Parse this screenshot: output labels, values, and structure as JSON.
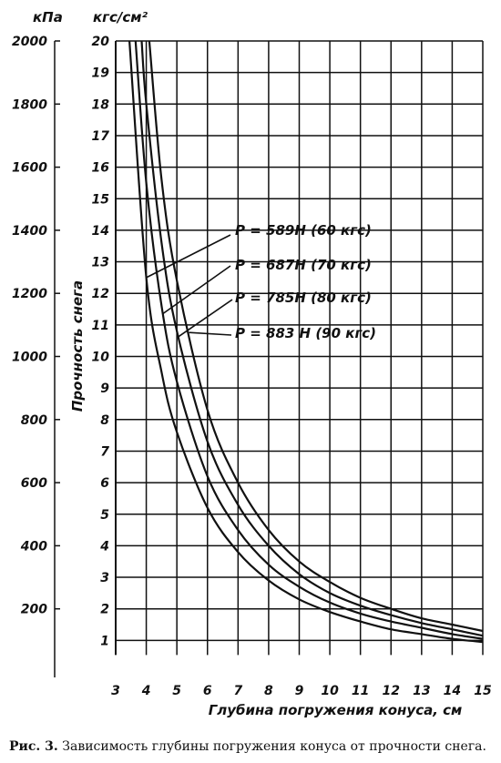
{
  "caption": {
    "lead": "Рис. 3.",
    "text": "Зависимость глубины погружения конуса от прочности снега."
  },
  "chart_data": {
    "type": "line",
    "xlabel": "Глубина погружения конуса, см",
    "ylabel": "Прочность снега",
    "y_unit": "кгс/см²",
    "y2_unit": "кПа",
    "xlim": [
      3,
      15
    ],
    "ylim": [
      0,
      20
    ],
    "y2lim": [
      0,
      2000
    ],
    "x_ticks": [
      3,
      4,
      5,
      6,
      7,
      8,
      9,
      10,
      11,
      12,
      13,
      14,
      15
    ],
    "y_ticks": [
      1,
      2,
      3,
      4,
      5,
      6,
      7,
      8,
      9,
      10,
      11,
      12,
      13,
      14,
      15,
      16,
      17,
      18,
      19,
      20
    ],
    "y2_ticks": [
      200,
      400,
      600,
      800,
      1000,
      1200,
      1400,
      1600,
      1800,
      2000
    ],
    "grid": true,
    "series": [
      {
        "name": "P = 589Н (60 кгс)",
        "x": [
          3.45,
          4,
          4.5,
          5,
          6,
          7,
          8,
          9,
          10,
          11,
          12,
          13,
          14,
          15
        ],
        "y": [
          20,
          12.5,
          9.5,
          7.6,
          5.2,
          3.8,
          2.9,
          2.3,
          1.9,
          1.6,
          1.35,
          1.2,
          1.05,
          0.95
        ]
      },
      {
        "name": "P = 687Н (70 кгс)",
        "x": [
          3.65,
          4,
          4.5,
          5,
          6,
          7,
          8,
          9,
          10,
          11,
          12,
          13,
          14,
          15
        ],
        "y": [
          20,
          15.5,
          11.6,
          9.2,
          6.2,
          4.5,
          3.4,
          2.7,
          2.2,
          1.85,
          1.6,
          1.4,
          1.2,
          1.05
        ]
      },
      {
        "name": "P = 785Н (80 кгс)",
        "x": [
          3.85,
          4,
          4.5,
          5,
          6,
          7,
          8,
          9,
          10,
          11,
          12,
          13,
          14,
          15
        ],
        "y": [
          20,
          18,
          13.6,
          10.8,
          7.3,
          5.3,
          4.0,
          3.1,
          2.5,
          2.1,
          1.8,
          1.55,
          1.35,
          1.15
        ]
      },
      {
        "name": "P = 883 Н (90 кгс)",
        "x": [
          4.1,
          4.5,
          5,
          6,
          7,
          8,
          9,
          10,
          11,
          12,
          13,
          14,
          15
        ],
        "y": [
          20,
          15.6,
          12.4,
          8.3,
          6.0,
          4.5,
          3.5,
          2.85,
          2.35,
          2.0,
          1.7,
          1.5,
          1.3
        ]
      }
    ]
  }
}
